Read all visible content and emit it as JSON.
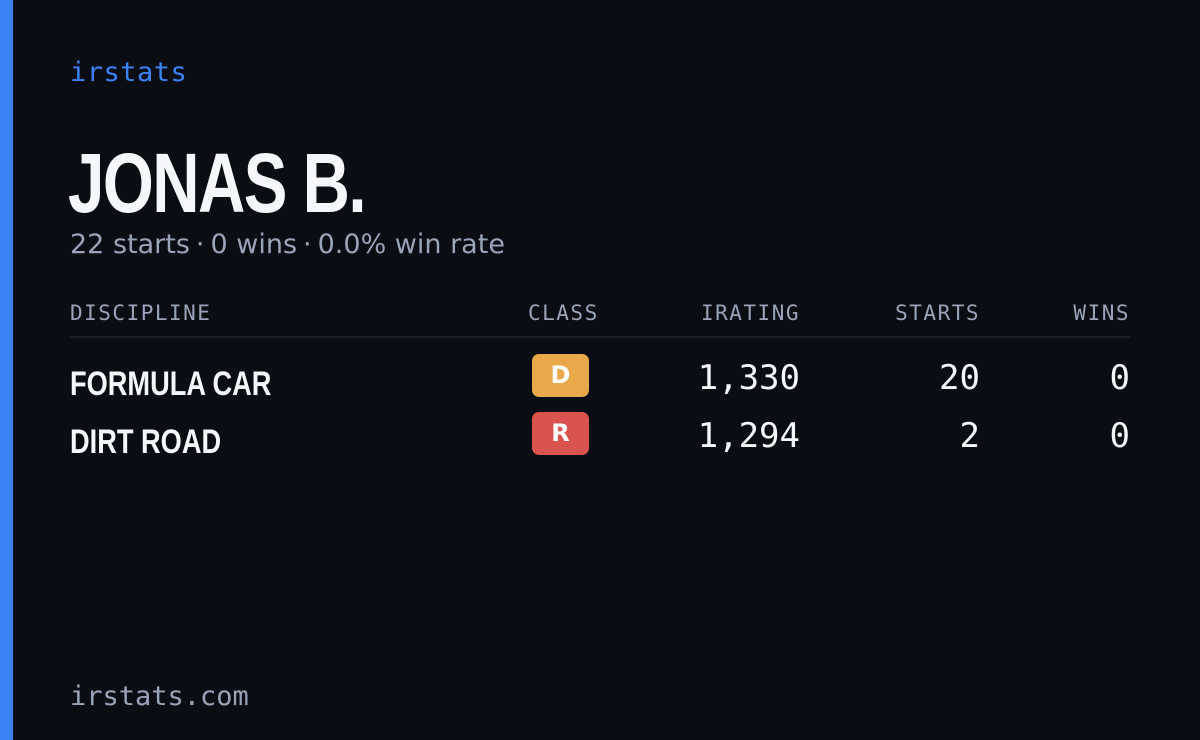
{
  "brand": {
    "name": "irstats",
    "color": "#3b82f6"
  },
  "player": {
    "name": "JONAS B.",
    "summary": {
      "starts": "22 starts",
      "wins": "0 wins",
      "win_rate": "0.0% win rate",
      "separator": "·"
    }
  },
  "table": {
    "headers": {
      "discipline": "DISCIPLINE",
      "class": "CLASS",
      "irating": "IRATING",
      "starts": "STARTS",
      "wins": "WINS"
    },
    "rows": [
      {
        "discipline": "FORMULA CAR",
        "class": "D",
        "class_color": "#e9a94b",
        "irating": "1,330",
        "starts": "20",
        "wins": "0"
      },
      {
        "discipline": "DIRT ROAD",
        "class": "R",
        "class_color": "#d9534f",
        "irating": "1,294",
        "starts": "2",
        "wins": "0"
      }
    ]
  },
  "footer": {
    "url": "irstats.com"
  }
}
